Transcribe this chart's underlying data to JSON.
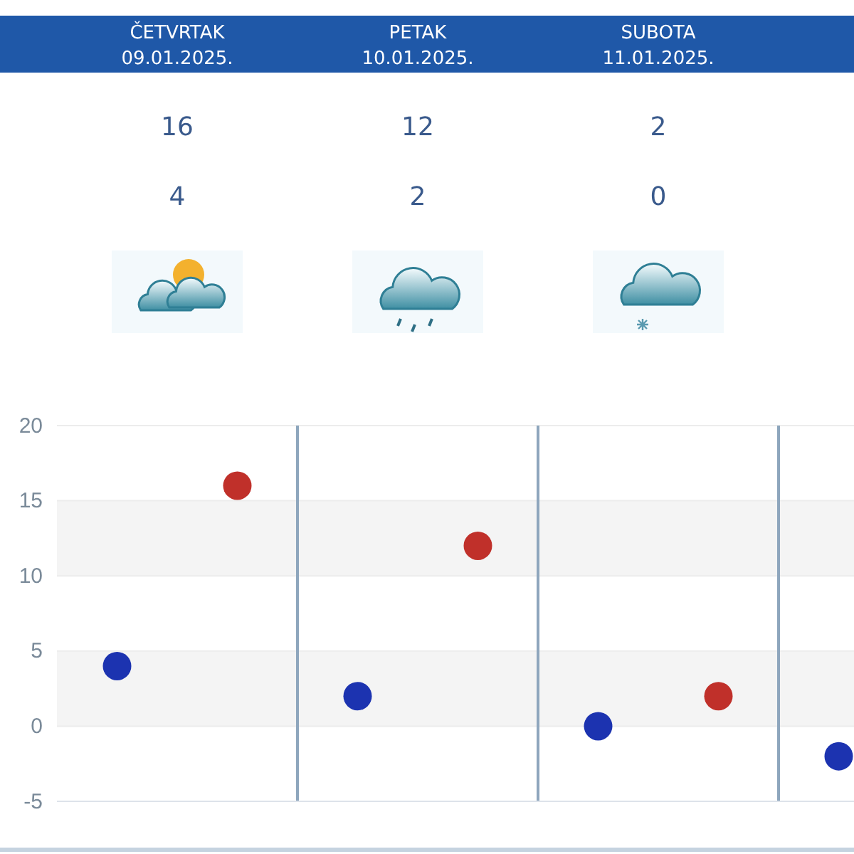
{
  "chart_data": {
    "type": "scatter",
    "categories": [
      null,
      null,
      null,
      null,
      null,
      null,
      null
    ],
    "series": [
      {
        "color": "#c0302a",
        "values": [
          null,
          16,
          null,
          12,
          null,
          2,
          null
        ]
      },
      {
        "color": "#1c33b0",
        "values": [
          4,
          null,
          2,
          null,
          0,
          null,
          -2
        ]
      }
    ],
    "annotations": [
      "ČETVRTAK 09.01.2025.",
      "PETAK 10.01.2025.",
      "SUBOTA 11.01.2025.",
      "16",
      "12",
      "2",
      "4",
      "2",
      "0"
    ],
    "ylim": [
      -5,
      20
    ],
    "yticks": [
      -5,
      0,
      5,
      10,
      15,
      20
    ],
    "grid": true,
    "marker": "circle",
    "legend": false
  }
}
